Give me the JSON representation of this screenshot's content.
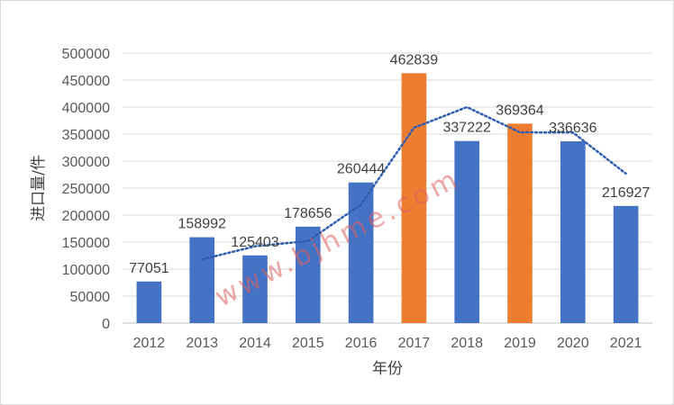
{
  "chart_data": {
    "type": "bar",
    "title": "",
    "xlabel": "年份",
    "ylabel": "进口量/件",
    "categories": [
      "2012",
      "2013",
      "2014",
      "2015",
      "2016",
      "2017",
      "2018",
      "2019",
      "2020",
      "2021"
    ],
    "values": [
      77051,
      158992,
      125403,
      178656,
      260444,
      462839,
      337222,
      369364,
      336636,
      216927
    ],
    "value_labels": [
      "77051",
      "158992",
      "125403",
      "178656",
      "260444",
      "462839",
      "337222",
      "369364",
      "336636",
      "216927"
    ],
    "ylim": [
      0,
      500000
    ],
    "yticks": [
      0,
      50000,
      100000,
      150000,
      200000,
      250000,
      300000,
      350000,
      400000,
      450000,
      500000
    ],
    "ytick_labels": [
      "0",
      "50000",
      "100000",
      "150000",
      "200000",
      "250000",
      "300000",
      "350000",
      "400000",
      "450000",
      "500000"
    ],
    "grid": true,
    "bar_colors": [
      "#4472C4",
      "#4472C4",
      "#4472C4",
      "#4472C4",
      "#4472C4",
      "#ED7D31",
      "#4472C4",
      "#ED7D31",
      "#4472C4",
      "#4472C4"
    ],
    "trendline": {
      "type": "moving-average",
      "period": 2,
      "style": "dotted",
      "color": "#2E5DB0"
    }
  },
  "watermark": "www.bjhme.com"
}
